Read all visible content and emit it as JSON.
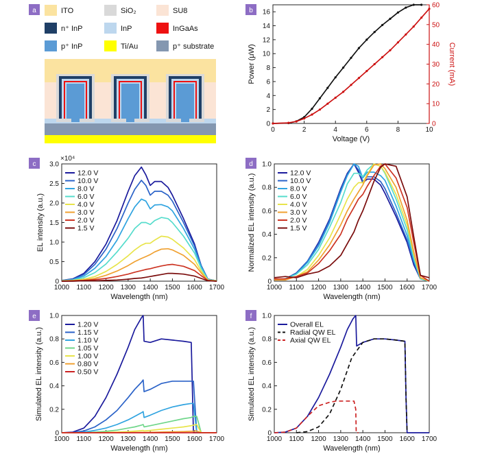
{
  "panel_labels": {
    "a": "a",
    "b": "b",
    "c": "c",
    "d": "d",
    "e": "e",
    "f": "f"
  },
  "schematic_legend": [
    {
      "label": "ITO",
      "color": "#fbe3a0"
    },
    {
      "label": "SiO₂",
      "color": "#d9d9d9"
    },
    {
      "label": "SU8",
      "color": "#fbe4d5"
    },
    {
      "label": "n⁺ InP",
      "color": "#1f3f66"
    },
    {
      "label": "InP",
      "color": "#bdd7ee"
    },
    {
      "label": "InGaAs",
      "color": "#ee1111"
    },
    {
      "label": "p⁺ InP",
      "color": "#5b9bd5"
    },
    {
      "label": "Ti/Au",
      "color": "#ffff00"
    },
    {
      "label": "p⁺ substrate",
      "color": "#8497b0"
    }
  ],
  "chart_data": [
    {
      "id": "b",
      "type": "line",
      "xlabel": "Voltage (V)",
      "ylabel": "Power (μW)",
      "y2label": "Current (mA)",
      "xlim": [
        0,
        10
      ],
      "ylim": [
        0,
        17
      ],
      "y2lim": [
        0,
        60
      ],
      "xticks": [
        "0",
        "2",
        "4",
        "6",
        "8",
        "10"
      ],
      "yticks": [
        "0",
        "2",
        "4",
        "6",
        "8",
        "10",
        "12",
        "14",
        "16"
      ],
      "y2ticks": [
        "0",
        "10",
        "20",
        "30",
        "40",
        "50",
        "60"
      ],
      "series": [
        {
          "role": "power",
          "color": "#111111",
          "axis": "left",
          "x": [
            0,
            1,
            1.5,
            2,
            2.5,
            3,
            3.5,
            4,
            4.5,
            5,
            5.5,
            6,
            6.5,
            7,
            7.5,
            8,
            8.5,
            9,
            9.5
          ],
          "y": [
            0,
            0.05,
            0.3,
            0.9,
            2.1,
            3.6,
            5.1,
            6.6,
            8.0,
            9.4,
            10.8,
            12.0,
            13.1,
            14.1,
            15.0,
            15.9,
            16.6,
            17.0,
            17.0
          ]
        },
        {
          "role": "current",
          "color": "#cc1111",
          "axis": "right",
          "x": [
            0,
            1,
            1.5,
            2,
            2.5,
            3,
            3.5,
            4,
            4.5,
            5,
            5.5,
            6,
            6.5,
            7,
            7.5,
            8,
            8.5,
            9,
            9.5,
            10
          ],
          "y": [
            0,
            0.3,
            1.0,
            2.5,
            4.5,
            7,
            10,
            13,
            16,
            19.5,
            23,
            26.5,
            30,
            33.5,
            37,
            41,
            45,
            49,
            53.5,
            58
          ]
        }
      ]
    },
    {
      "id": "c",
      "type": "line",
      "xlabel": "Wavelength (nm)",
      "ylabel": "EL intensity (a.u.)",
      "exponent": "×10⁴",
      "xlim": [
        1000,
        1700
      ],
      "ylim": [
        0,
        3.0
      ],
      "xticks": [
        "1000",
        "1100",
        "1200",
        "1300",
        "1400",
        "1500",
        "1600",
        "1700"
      ],
      "yticks": [
        "0",
        "0.5",
        "1.0",
        "1.5",
        "2.0",
        "2.5",
        "3.0"
      ],
      "x": [
        1000,
        1050,
        1100,
        1150,
        1200,
        1250,
        1300,
        1330,
        1360,
        1380,
        1400,
        1420,
        1450,
        1480,
        1500,
        1550,
        1600,
        1630,
        1660,
        1700
      ],
      "series": [
        {
          "name": "12.0 V",
          "color": "#1a1a9c",
          "values": [
            0.02,
            0.06,
            0.2,
            0.5,
            0.95,
            1.55,
            2.3,
            2.7,
            2.92,
            2.72,
            2.45,
            2.55,
            2.55,
            2.4,
            2.2,
            1.6,
            0.95,
            0.4,
            0.05,
            0.01
          ]
        },
        {
          "name": "10.0 V",
          "color": "#2a62c8",
          "values": [
            0.02,
            0.05,
            0.17,
            0.43,
            0.82,
            1.35,
            2.0,
            2.35,
            2.58,
            2.45,
            2.2,
            2.3,
            2.3,
            2.2,
            2.05,
            1.5,
            0.9,
            0.4,
            0.05,
            0.01
          ]
        },
        {
          "name": "8.0 V",
          "color": "#2fa3e0",
          "values": [
            0.01,
            0.04,
            0.13,
            0.33,
            0.63,
            1.05,
            1.6,
            1.9,
            2.1,
            2.05,
            1.85,
            1.95,
            1.96,
            1.9,
            1.8,
            1.35,
            0.82,
            0.37,
            0.04,
            0.01
          ]
        },
        {
          "name": "6.0 V",
          "color": "#55dccc",
          "values": [
            0.01,
            0.03,
            0.09,
            0.22,
            0.44,
            0.75,
            1.1,
            1.35,
            1.5,
            1.5,
            1.45,
            1.55,
            1.63,
            1.6,
            1.5,
            1.15,
            0.72,
            0.33,
            0.04,
            0.01
          ]
        },
        {
          "name": "4.0 V",
          "color": "#e8e44a",
          "values": [
            0.01,
            0.02,
            0.05,
            0.12,
            0.25,
            0.43,
            0.65,
            0.8,
            0.92,
            0.97,
            0.97,
            1.05,
            1.15,
            1.13,
            1.07,
            0.85,
            0.55,
            0.26,
            0.03,
            0.01
          ]
        },
        {
          "name": "3.0 V",
          "color": "#f0a030",
          "values": [
            0.0,
            0.01,
            0.03,
            0.07,
            0.15,
            0.26,
            0.4,
            0.5,
            0.58,
            0.63,
            0.68,
            0.75,
            0.82,
            0.83,
            0.8,
            0.66,
            0.43,
            0.21,
            0.02,
            0.0
          ]
        },
        {
          "name": "2.0 V",
          "color": "#cc3322",
          "values": [
            0.0,
            0.01,
            0.02,
            0.04,
            0.07,
            0.12,
            0.18,
            0.23,
            0.27,
            0.3,
            0.32,
            0.35,
            0.39,
            0.42,
            0.43,
            0.38,
            0.27,
            0.14,
            0.02,
            0.0
          ]
        },
        {
          "name": "1.5 V",
          "color": "#7a0c0c",
          "values": [
            0.0,
            0.0,
            0.01,
            0.01,
            0.02,
            0.03,
            0.05,
            0.07,
            0.08,
            0.1,
            0.12,
            0.14,
            0.17,
            0.2,
            0.2,
            0.18,
            0.13,
            0.07,
            0.01,
            0.0
          ]
        }
      ]
    },
    {
      "id": "d",
      "type": "line",
      "xlabel": "Wavelength (nm)",
      "ylabel": "Normalized EL intensity (a.u.)",
      "xlim": [
        1000,
        1700
      ],
      "ylim": [
        0,
        1.0
      ],
      "xticks": [
        "1000",
        "1100",
        "1200",
        "1300",
        "1400",
        "1500",
        "1600",
        "1700"
      ],
      "yticks": [
        "0",
        "0.2",
        "0.4",
        "0.6",
        "0.8",
        "1.0"
      ],
      "x": [
        1000,
        1050,
        1100,
        1150,
        1200,
        1250,
        1300,
        1330,
        1360,
        1380,
        1400,
        1420,
        1450,
        1480,
        1500,
        1550,
        1600,
        1630,
        1660,
        1700
      ],
      "series": [
        {
          "name": "12.0 V",
          "color": "#1a1a9c",
          "values": [
            0.01,
            0.02,
            0.07,
            0.17,
            0.33,
            0.53,
            0.79,
            0.92,
            1.0,
            0.93,
            0.84,
            0.87,
            0.87,
            0.82,
            0.75,
            0.55,
            0.33,
            0.14,
            0.02,
            0.0
          ]
        },
        {
          "name": "10.0 V",
          "color": "#2a62c8",
          "values": [
            0.01,
            0.02,
            0.07,
            0.17,
            0.32,
            0.52,
            0.78,
            0.91,
            1.0,
            0.95,
            0.85,
            0.89,
            0.89,
            0.85,
            0.79,
            0.58,
            0.35,
            0.16,
            0.02,
            0.0
          ]
        },
        {
          "name": "8.0 V",
          "color": "#2fa3e0",
          "values": [
            0.01,
            0.02,
            0.06,
            0.16,
            0.3,
            0.5,
            0.76,
            0.9,
            1.0,
            0.98,
            0.88,
            0.93,
            0.93,
            0.9,
            0.86,
            0.64,
            0.39,
            0.18,
            0.02,
            0.0
          ]
        },
        {
          "name": "6.0 V",
          "color": "#55dccc",
          "values": [
            0.01,
            0.02,
            0.06,
            0.14,
            0.27,
            0.46,
            0.67,
            0.83,
            0.92,
            0.92,
            0.89,
            0.95,
            1.0,
            0.98,
            0.92,
            0.7,
            0.44,
            0.2,
            0.02,
            0.0
          ]
        },
        {
          "name": "4.0 V",
          "color": "#e8e44a",
          "values": [
            0.01,
            0.02,
            0.04,
            0.1,
            0.22,
            0.37,
            0.57,
            0.7,
            0.8,
            0.84,
            0.84,
            0.91,
            1.0,
            0.98,
            0.93,
            0.74,
            0.48,
            0.23,
            0.03,
            0.0
          ]
        },
        {
          "name": "3.0 V",
          "color": "#f0a030",
          "values": [
            0.01,
            0.01,
            0.04,
            0.08,
            0.18,
            0.31,
            0.48,
            0.6,
            0.7,
            0.76,
            0.82,
            0.9,
            0.99,
            1.0,
            0.96,
            0.8,
            0.52,
            0.25,
            0.03,
            0.0
          ]
        },
        {
          "name": "2.0 V",
          "color": "#cc3322",
          "values": [
            0.02,
            0.02,
            0.04,
            0.07,
            0.15,
            0.26,
            0.4,
            0.53,
            0.63,
            0.7,
            0.74,
            0.81,
            0.9,
            0.98,
            1.0,
            0.88,
            0.63,
            0.33,
            0.05,
            0.0
          ]
        },
        {
          "name": "1.5 V",
          "color": "#7a0c0c",
          "values": [
            0.03,
            0.04,
            0.03,
            0.06,
            0.08,
            0.13,
            0.22,
            0.32,
            0.42,
            0.52,
            0.6,
            0.7,
            0.85,
            0.97,
            1.0,
            0.98,
            0.72,
            0.38,
            0.05,
            0.03
          ]
        }
      ]
    },
    {
      "id": "e",
      "type": "line",
      "xlabel": "Wavelength (nm)",
      "ylabel": "Simulated EL intensity (a.u.)",
      "xlim": [
        1000,
        1700
      ],
      "ylim": [
        0,
        1.0
      ],
      "xticks": [
        "1000",
        "1100",
        "1200",
        "1300",
        "1400",
        "1500",
        "1600",
        "1700"
      ],
      "yticks": [
        "0",
        "0.2",
        "0.4",
        "0.6",
        "0.8",
        "1.0"
      ],
      "x": [
        1000,
        1050,
        1100,
        1150,
        1200,
        1250,
        1300,
        1330,
        1360,
        1368,
        1372,
        1400,
        1450,
        1500,
        1550,
        1585,
        1595,
        1610,
        1630,
        1700
      ],
      "series": [
        {
          "name": "1.20 V",
          "color": "#1a1a9c",
          "values": [
            0,
            0.005,
            0.04,
            0.14,
            0.3,
            0.5,
            0.73,
            0.88,
            0.98,
            1.0,
            0.78,
            0.77,
            0.8,
            0.79,
            0.78,
            0.77,
            0.0,
            0.0,
            0.0,
            0.0
          ]
        },
        {
          "name": "1.15 V",
          "color": "#2a62c8",
          "values": [
            0,
            0.002,
            0.015,
            0.05,
            0.11,
            0.19,
            0.3,
            0.37,
            0.43,
            0.45,
            0.35,
            0.37,
            0.42,
            0.44,
            0.44,
            0.44,
            0.44,
            0.0,
            0.0,
            0.0
          ]
        },
        {
          "name": "1.10 V",
          "color": "#2fa3e0",
          "values": [
            0,
            0.0,
            0.005,
            0.02,
            0.04,
            0.07,
            0.11,
            0.14,
            0.17,
            0.18,
            0.13,
            0.15,
            0.19,
            0.22,
            0.24,
            0.25,
            0.25,
            0.0,
            0.0,
            0.0
          ]
        },
        {
          "name": "1.05 V",
          "color": "#6fd68a",
          "values": [
            0,
            0.0,
            0.0,
            0.005,
            0.012,
            0.022,
            0.04,
            0.05,
            0.065,
            0.07,
            0.05,
            0.06,
            0.08,
            0.1,
            0.12,
            0.13,
            0.14,
            0.14,
            0.0,
            0.0
          ]
        },
        {
          "name": "1.00 V",
          "color": "#e8e44a",
          "values": [
            0,
            0.0,
            0.0,
            0.0,
            0.003,
            0.006,
            0.01,
            0.014,
            0.018,
            0.02,
            0.015,
            0.02,
            0.03,
            0.04,
            0.05,
            0.06,
            0.065,
            0.07,
            0.0,
            0.0
          ]
        },
        {
          "name": "0.80 V",
          "color": "#f0a030",
          "values": [
            0,
            0,
            0,
            0,
            0,
            0.001,
            0.002,
            0.003,
            0.004,
            0.004,
            0.003,
            0.004,
            0.006,
            0.008,
            0.01,
            0.012,
            0.013,
            0.015,
            0.0,
            0.0
          ]
        },
        {
          "name": "0.50 V",
          "color": "#cc2222",
          "values": [
            0,
            0,
            0,
            0,
            0,
            0,
            0,
            0,
            0,
            0,
            0,
            0,
            0,
            0,
            0,
            0,
            0,
            0,
            0,
            0
          ]
        }
      ]
    },
    {
      "id": "f",
      "type": "line",
      "xlabel": "Wavelength (nm)",
      "ylabel": "Simulated EL intensity (a.u.)",
      "xlim": [
        1000,
        1700
      ],
      "ylim": [
        0,
        1.0
      ],
      "xticks": [
        "1000",
        "1100",
        "1200",
        "1300",
        "1400",
        "1500",
        "1600",
        "1700"
      ],
      "yticks": [
        "0",
        "0.2",
        "0.4",
        "0.6",
        "0.8",
        "1.0"
      ],
      "series": [
        {
          "name": "Overall EL",
          "color": "#1a1a9c",
          "dash": "solid",
          "x": [
            1000,
            1050,
            1100,
            1150,
            1200,
            1250,
            1300,
            1330,
            1355,
            1368,
            1372,
            1400,
            1450,
            1500,
            1550,
            1590,
            1595,
            1600,
            1700
          ],
          "y": [
            0,
            0.005,
            0.04,
            0.14,
            0.3,
            0.5,
            0.73,
            0.88,
            0.97,
            1.0,
            0.74,
            0.77,
            0.8,
            0.8,
            0.79,
            0.78,
            0.3,
            0.0,
            0.0
          ]
        },
        {
          "name": "Radial QW EL",
          "color": "#111111",
          "dash": "dashed",
          "x": [
            1100,
            1150,
            1200,
            1250,
            1300,
            1350,
            1400,
            1450,
            1500,
            1550,
            1590,
            1595,
            1600
          ],
          "y": [
            0.0,
            0.01,
            0.05,
            0.16,
            0.37,
            0.64,
            0.77,
            0.8,
            0.8,
            0.79,
            0.78,
            0.3,
            0.0
          ]
        },
        {
          "name": "Axial QW EL",
          "color": "#cc2222",
          "dash": "dashed",
          "x": [
            1000,
            1050,
            1100,
            1150,
            1200,
            1250,
            1280,
            1320,
            1360,
            1368,
            1370,
            1380
          ],
          "y": [
            0.0,
            0.005,
            0.04,
            0.14,
            0.23,
            0.26,
            0.27,
            0.27,
            0.27,
            0.2,
            0.0,
            0.0
          ]
        }
      ]
    }
  ]
}
